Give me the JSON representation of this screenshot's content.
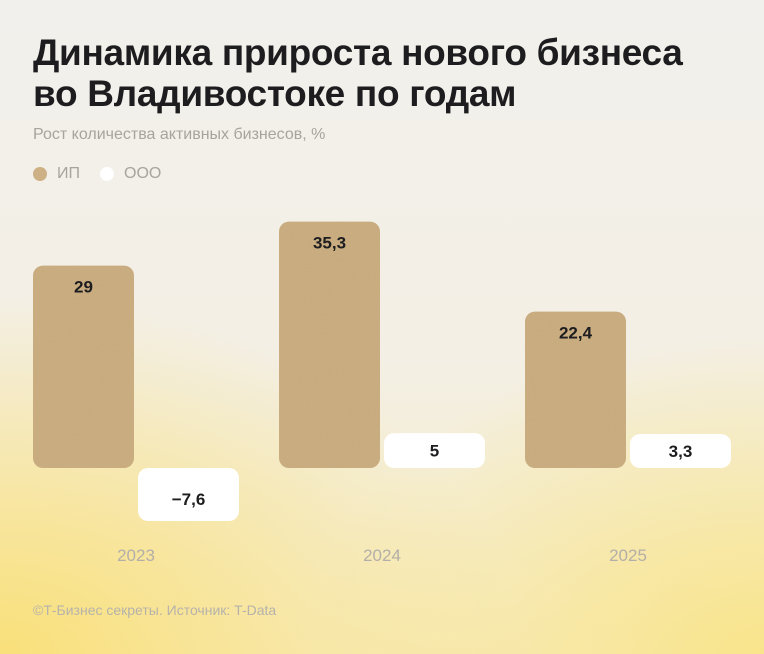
{
  "title": "Динамика прироста нового бизнеса во Владивостоке по годам",
  "subtitle": "Рост количества активных бизнесов, %",
  "legend": [
    {
      "label": "ИП",
      "color": "#cdb083"
    },
    {
      "label": "ООО",
      "color": "#ffffff"
    }
  ],
  "chart_data": {
    "type": "bar",
    "categories": [
      "2023",
      "2024",
      "2025"
    ],
    "series": [
      {
        "name": "ИП",
        "values": [
          29,
          35.3,
          22.4
        ],
        "labels": [
          "29",
          "35,3",
          "22,4"
        ],
        "color": "#cdb083"
      },
      {
        "name": "ООО",
        "values": [
          -7.6,
          5,
          3.3
        ],
        "labels": [
          "−7,6",
          "5",
          "3,3"
        ],
        "color": "#ffffff"
      }
    ],
    "title": "Динамика прироста нового бизнеса во Владивостоке по годам",
    "subtitle": "Рост количества активных бизнесов, %",
    "xlabel": "",
    "ylabel": "",
    "ylim": [
      -7.6,
      35.3
    ],
    "grid": false,
    "legend": "top-left"
  },
  "footer": "©Т-Бизнес секреты. Источник: T-Data"
}
